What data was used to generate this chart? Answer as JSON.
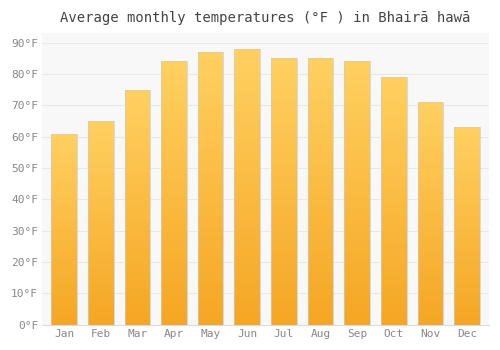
{
  "title": "Average monthly temperatures (°F ) in Bhairā hawā",
  "months": [
    "Jan",
    "Feb",
    "Mar",
    "Apr",
    "May",
    "Jun",
    "Jul",
    "Aug",
    "Sep",
    "Oct",
    "Nov",
    "Dec"
  ],
  "values": [
    61,
    65,
    75,
    84,
    87,
    88,
    85,
    85,
    84,
    79,
    71,
    63
  ],
  "bar_color_bottom": "#F5A623",
  "bar_color_top": "#FFD966",
  "bar_edge_color": "#CCCCCC",
  "background_color": "#FFFFFF",
  "plot_bg_color": "#F8F8F8",
  "grid_color": "#E8E8E8",
  "yticks": [
    0,
    10,
    20,
    30,
    40,
    50,
    60,
    70,
    80,
    90
  ],
  "ylim": [
    0,
    93
  ],
  "title_fontsize": 10,
  "tick_fontsize": 8,
  "title_color": "#444444",
  "tick_color": "#888888",
  "bar_width": 0.7
}
